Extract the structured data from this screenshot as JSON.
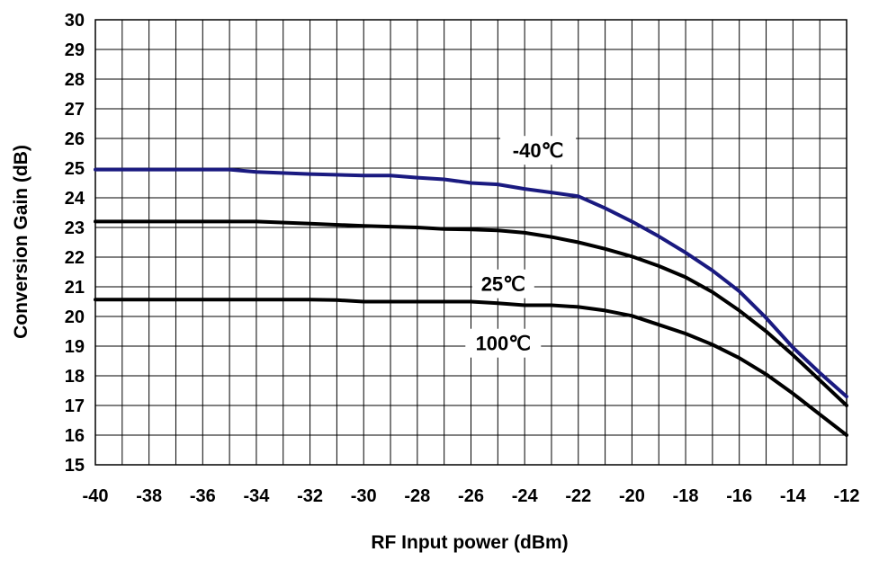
{
  "chart_data": {
    "type": "line",
    "title": "",
    "xlabel": "RF Input power (dBm)",
    "ylabel": "Conversion Gain (dB)",
    "xlim": [
      -40,
      -12
    ],
    "ylim": [
      15,
      30
    ],
    "x_ticks": [
      -40,
      -38,
      -36,
      -34,
      -32,
      -30,
      -28,
      -26,
      -24,
      -22,
      -20,
      -18,
      -16,
      -14,
      -12
    ],
    "y_ticks": [
      15,
      16,
      17,
      18,
      19,
      20,
      21,
      22,
      23,
      24,
      25,
      26,
      27,
      28,
      29,
      30
    ],
    "grid": true,
    "legend": "none",
    "series": [
      {
        "name": "-40℃",
        "color": "#1a1a80",
        "x": [
          -40,
          -38,
          -36,
          -35,
          -34,
          -32,
          -30,
          -29,
          -28,
          -27,
          -26,
          -25,
          -24,
          -23,
          -22,
          -21,
          -20,
          -19,
          -18,
          -17,
          -16,
          -15,
          -14,
          -13,
          -12
        ],
        "y": [
          24.95,
          24.95,
          24.95,
          24.95,
          24.87,
          24.8,
          24.75,
          24.75,
          24.68,
          24.62,
          24.5,
          24.45,
          24.3,
          24.18,
          24.05,
          23.65,
          23.2,
          22.7,
          22.15,
          21.55,
          20.85,
          19.95,
          18.95,
          18.1,
          17.3
        ]
      },
      {
        "name": "25℃",
        "color": "#000000",
        "x": [
          -40,
          -38,
          -36,
          -34,
          -32,
          -30,
          -28,
          -27,
          -26,
          -25,
          -24,
          -23,
          -22,
          -21,
          -20,
          -19,
          -18,
          -17,
          -16,
          -15,
          -14,
          -13,
          -12
        ],
        "y": [
          23.2,
          23.2,
          23.2,
          23.2,
          23.13,
          23.05,
          23.0,
          22.95,
          22.93,
          22.9,
          22.82,
          22.68,
          22.5,
          22.28,
          22.02,
          21.7,
          21.32,
          20.82,
          20.2,
          19.5,
          18.7,
          17.85,
          17.0
        ]
      },
      {
        "name": "100℃",
        "color": "#000000",
        "x": [
          -40,
          -38,
          -36,
          -34,
          -32,
          -31,
          -30,
          -28,
          -26,
          -25,
          -24,
          -23,
          -22,
          -21,
          -20,
          -19,
          -18,
          -17,
          -16,
          -15,
          -14,
          -13,
          -12
        ],
        "y": [
          20.57,
          20.57,
          20.57,
          20.57,
          20.57,
          20.55,
          20.5,
          20.5,
          20.5,
          20.45,
          20.38,
          20.38,
          20.32,
          20.2,
          20.02,
          19.72,
          19.42,
          19.05,
          18.6,
          18.05,
          17.4,
          16.7,
          16.0
        ]
      }
    ],
    "annotations": [
      {
        "text": "-40℃",
        "series": 0,
        "x": -23.5,
        "y": 25.6
      },
      {
        "text": "25℃",
        "series": 1,
        "x": -24.8,
        "y": 21.1
      },
      {
        "text": "100℃",
        "series": 2,
        "x": -24.8,
        "y": 19.1
      }
    ]
  }
}
